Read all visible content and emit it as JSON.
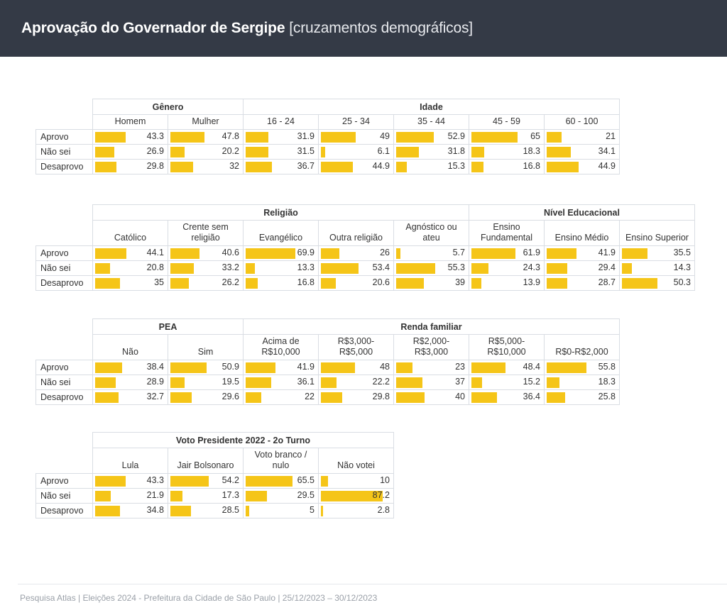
{
  "header": {
    "title": "Aprovação do Governador de Sergipe",
    "subtitle": "[cruzamentos demográficos]"
  },
  "row_labels": [
    "Aprovo",
    "Não sei",
    "Desaprovo"
  ],
  "chart_data": {
    "type": "table",
    "title": "Aprovação do Governador de Sergipe [cruzamentos demográficos]",
    "bar_scale_max": 100,
    "rows": [
      "Aprovo",
      "Não sei",
      "Desaprovo"
    ],
    "tables": [
      {
        "groups": [
          {
            "name": "Gênero",
            "columns": [
              {
                "label": "Homem",
                "values": [
                  43.3,
                  26.9,
                  29.8
                ]
              },
              {
                "label": "Mulher",
                "values": [
                  47.8,
                  20.2,
                  32
                ]
              }
            ]
          },
          {
            "name": "Idade",
            "columns": [
              {
                "label": "16 - 24",
                "values": [
                  31.9,
                  31.5,
                  36.7
                ]
              },
              {
                "label": "25 - 34",
                "values": [
                  49,
                  6.1,
                  44.9
                ]
              },
              {
                "label": "35 - 44",
                "values": [
                  52.9,
                  31.8,
                  15.3
                ]
              },
              {
                "label": "45 - 59",
                "values": [
                  65,
                  18.3,
                  16.8
                ]
              },
              {
                "label": "60 - 100",
                "values": [
                  21,
                  34.1,
                  44.9
                ]
              }
            ]
          }
        ]
      },
      {
        "groups": [
          {
            "name": "Religião",
            "columns": [
              {
                "label": "Católico",
                "values": [
                  44.1,
                  20.8,
                  35
                ]
              },
              {
                "label": "Crente sem religião",
                "values": [
                  40.6,
                  33.2,
                  26.2
                ]
              },
              {
                "label": "Evangélico",
                "values": [
                  69.9,
                  13.3,
                  16.8
                ]
              },
              {
                "label": "Outra religião",
                "values": [
                  26,
                  53.4,
                  20.6
                ]
              },
              {
                "label": "Agnóstico ou ateu",
                "values": [
                  5.7,
                  55.3,
                  39
                ]
              }
            ]
          },
          {
            "name": "Nível Educacional",
            "columns": [
              {
                "label": "Ensino Fundamental",
                "values": [
                  61.9,
                  24.3,
                  13.9
                ]
              },
              {
                "label": "Ensino Médio",
                "values": [
                  41.9,
                  29.4,
                  28.7
                ]
              },
              {
                "label": "Ensino Superior",
                "values": [
                  35.5,
                  14.3,
                  50.3
                ]
              }
            ]
          }
        ]
      },
      {
        "groups": [
          {
            "name": "PEA",
            "columns": [
              {
                "label": "Não",
                "values": [
                  38.4,
                  28.9,
                  32.7
                ]
              },
              {
                "label": "Sim",
                "values": [
                  50.9,
                  19.5,
                  29.6
                ]
              }
            ]
          },
          {
            "name": "Renda familiar",
            "columns": [
              {
                "label": "Acima de R$10,000",
                "values": [
                  41.9,
                  36.1,
                  22
                ]
              },
              {
                "label": "R$3,000-R$5,000",
                "values": [
                  48,
                  22.2,
                  29.8
                ]
              },
              {
                "label": "R$2,000-R$3,000",
                "values": [
                  23,
                  37,
                  40
                ]
              },
              {
                "label": "R$5,000-R$10,000",
                "values": [
                  48.4,
                  15.2,
                  36.4
                ]
              },
              {
                "label": "R$0-R$2,000",
                "values": [
                  55.8,
                  18.3,
                  25.8
                ]
              }
            ]
          }
        ]
      },
      {
        "groups": [
          {
            "name": "Voto Presidente 2022 - 2o Turno",
            "columns": [
              {
                "label": "Lula",
                "values": [
                  43.3,
                  21.9,
                  34.8
                ]
              },
              {
                "label": "Jair Bolsonaro",
                "values": [
                  54.2,
                  17.3,
                  28.5
                ]
              },
              {
                "label": "Voto branco / nulo",
                "values": [
                  65.5,
                  29.5,
                  5
                ]
              },
              {
                "label": "Não votei",
                "values": [
                  10,
                  87.2,
                  2.8
                ]
              }
            ]
          }
        ]
      }
    ]
  },
  "colors": {
    "header_bg": "#343a46",
    "bar": "#f5c518",
    "grid": "#d9dde3",
    "footer_text": "#9aa0a8"
  },
  "footer": {
    "text": "Pesquisa Atlas  |  Eleições 2024 - Prefeitura da Cidade de São Paulo  |  25/12/2023 – 30/12/2023"
  }
}
